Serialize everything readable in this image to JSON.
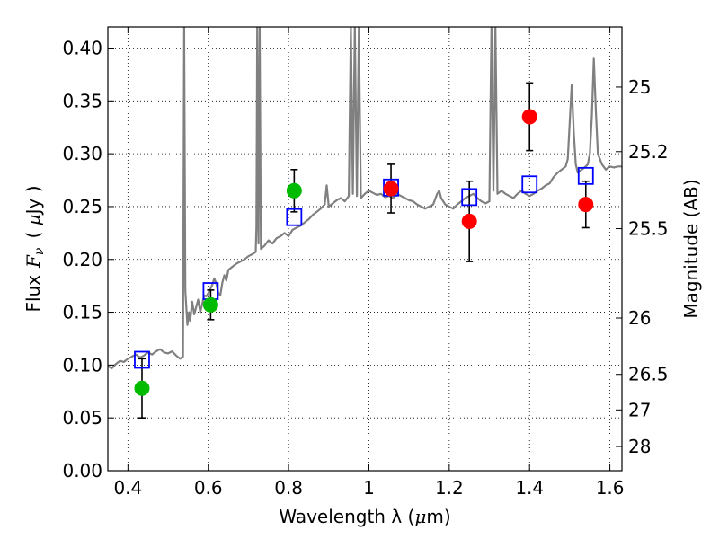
{
  "chart_data": {
    "type": "scatter",
    "xlabel_main": "Wavelength  λ (",
    "xlabel_mu": "μ",
    "xlabel_end": "m)",
    "ylabel_left_a": "Flux",
    "ylabel_left_sym": "F",
    "ylabel_left_sub": "ν",
    "ylabel_left_b": "( ",
    "ylabel_left_mu": "μ",
    "ylabel_left_c": "Jy )",
    "ylabel_right": "Magnitude (AB)",
    "xlim": [
      0.35,
      1.63
    ],
    "ylim": [
      0.0,
      0.42
    ],
    "grid": true,
    "x_ticks": [
      {
        "value": 0.4,
        "label": "0.4"
      },
      {
        "value": 0.6,
        "label": "0.6"
      },
      {
        "value": 0.8,
        "label": "0.8"
      },
      {
        "value": 1.0,
        "label": "1"
      },
      {
        "value": 1.2,
        "label": "1.2"
      },
      {
        "value": 1.4,
        "label": "1.4"
      },
      {
        "value": 1.6,
        "label": "1.6"
      }
    ],
    "y_ticks": [
      {
        "value": 0.0,
        "label": "0.00"
      },
      {
        "value": 0.05,
        "label": "0.05"
      },
      {
        "value": 0.1,
        "label": "0.10"
      },
      {
        "value": 0.15,
        "label": "0.15"
      },
      {
        "value": 0.2,
        "label": "0.20"
      },
      {
        "value": 0.25,
        "label": "0.25"
      },
      {
        "value": 0.3,
        "label": "0.30"
      },
      {
        "value": 0.35,
        "label": "0.35"
      },
      {
        "value": 0.4,
        "label": "0.40"
      }
    ],
    "magnitude_ticks": [
      {
        "label": "25",
        "mag": 25
      },
      {
        "label": "25.2",
        "mag": 25.2
      },
      {
        "label": "25.5",
        "mag": 25.5
      },
      {
        "label": "26",
        "mag": 26
      },
      {
        "label": "26.5",
        "mag": 26.5
      },
      {
        "label": "27",
        "mag": 27
      },
      {
        "label": "28",
        "mag": 28
      }
    ],
    "magnitude_zero_point": 23.9,
    "colors": {
      "model_sed": "#808080",
      "model_photometry": "#0000ff",
      "optical_obs": "#00bb00",
      "nir_obs": "#ff0000",
      "errorbar": "#000000"
    },
    "model_sed": [
      [
        0.35,
        0.099
      ],
      [
        0.36,
        0.097
      ],
      [
        0.37,
        0.101
      ],
      [
        0.38,
        0.104
      ],
      [
        0.39,
        0.103
      ],
      [
        0.4,
        0.106
      ],
      [
        0.41,
        0.108
      ],
      [
        0.42,
        0.11
      ],
      [
        0.43,
        0.107
      ],
      [
        0.44,
        0.109
      ],
      [
        0.45,
        0.112
      ],
      [
        0.46,
        0.11
      ],
      [
        0.47,
        0.113
      ],
      [
        0.48,
        0.115
      ],
      [
        0.49,
        0.112
      ],
      [
        0.5,
        0.111
      ],
      [
        0.51,
        0.113
      ],
      [
        0.52,
        0.109
      ],
      [
        0.53,
        0.106
      ],
      [
        0.537,
        0.108
      ],
      [
        0.54,
        0.42
      ],
      [
        0.543,
        0.17
      ],
      [
        0.548,
        0.138
      ],
      [
        0.552,
        0.15
      ],
      [
        0.555,
        0.142
      ],
      [
        0.56,
        0.16
      ],
      [
        0.565,
        0.148
      ],
      [
        0.57,
        0.155
      ],
      [
        0.575,
        0.162
      ],
      [
        0.58,
        0.15
      ],
      [
        0.585,
        0.158
      ],
      [
        0.59,
        0.166
      ],
      [
        0.595,
        0.165
      ],
      [
        0.6,
        0.168
      ],
      [
        0.605,
        0.172
      ],
      [
        0.61,
        0.176
      ],
      [
        0.615,
        0.182
      ],
      [
        0.62,
        0.177
      ],
      [
        0.625,
        0.168
      ],
      [
        0.63,
        0.166
      ],
      [
        0.635,
        0.178
      ],
      [
        0.64,
        0.185
      ],
      [
        0.645,
        0.18
      ],
      [
        0.65,
        0.19
      ],
      [
        0.66,
        0.193
      ],
      [
        0.67,
        0.196
      ],
      [
        0.68,
        0.198
      ],
      [
        0.69,
        0.2
      ],
      [
        0.7,
        0.203
      ],
      [
        0.71,
        0.205
      ],
      [
        0.718,
        0.207
      ],
      [
        0.72,
        0.23
      ],
      [
        0.722,
        0.42
      ],
      [
        0.725,
        0.215
      ],
      [
        0.728,
        0.42
      ],
      [
        0.731,
        0.21
      ],
      [
        0.74,
        0.213
      ],
      [
        0.75,
        0.218
      ],
      [
        0.76,
        0.215
      ],
      [
        0.77,
        0.22
      ],
      [
        0.78,
        0.222
      ],
      [
        0.79,
        0.225
      ],
      [
        0.8,
        0.222
      ],
      [
        0.81,
        0.228
      ],
      [
        0.82,
        0.23
      ],
      [
        0.83,
        0.232
      ],
      [
        0.84,
        0.235
      ],
      [
        0.85,
        0.238
      ],
      [
        0.86,
        0.242
      ],
      [
        0.87,
        0.245
      ],
      [
        0.88,
        0.248
      ],
      [
        0.89,
        0.252
      ],
      [
        0.895,
        0.27
      ],
      [
        0.9,
        0.25
      ],
      [
        0.91,
        0.253
      ],
      [
        0.92,
        0.256
      ],
      [
        0.93,
        0.258
      ],
      [
        0.94,
        0.255
      ],
      [
        0.95,
        0.26
      ],
      [
        0.955,
        0.42
      ],
      [
        0.96,
        0.262
      ],
      [
        0.965,
        0.42
      ],
      [
        0.97,
        0.26
      ],
      [
        0.975,
        0.42
      ],
      [
        0.98,
        0.258
      ],
      [
        0.99,
        0.262
      ],
      [
        1.0,
        0.265
      ],
      [
        1.01,
        0.263
      ],
      [
        1.02,
        0.261
      ],
      [
        1.03,
        0.262
      ],
      [
        1.04,
        0.259
      ],
      [
        1.05,
        0.26
      ],
      [
        1.06,
        0.258
      ],
      [
        1.07,
        0.262
      ],
      [
        1.08,
        0.26
      ],
      [
        1.09,
        0.258
      ],
      [
        1.1,
        0.256
      ],
      [
        1.11,
        0.255
      ],
      [
        1.12,
        0.252
      ],
      [
        1.13,
        0.25
      ],
      [
        1.14,
        0.248
      ],
      [
        1.15,
        0.25
      ],
      [
        1.16,
        0.252
      ],
      [
        1.17,
        0.262
      ],
      [
        1.175,
        0.265
      ],
      [
        1.18,
        0.258
      ],
      [
        1.19,
        0.252
      ],
      [
        1.2,
        0.25
      ],
      [
        1.21,
        0.248
      ],
      [
        1.22,
        0.252
      ],
      [
        1.23,
        0.255
      ],
      [
        1.24,
        0.258
      ],
      [
        1.25,
        0.26
      ],
      [
        1.26,
        0.262
      ],
      [
        1.27,
        0.258
      ],
      [
        1.28,
        0.255
      ],
      [
        1.29,
        0.253
      ],
      [
        1.3,
        0.255
      ],
      [
        1.305,
        0.42
      ],
      [
        1.31,
        0.265
      ],
      [
        1.315,
        0.42
      ],
      [
        1.32,
        0.262
      ],
      [
        1.33,
        0.265
      ],
      [
        1.34,
        0.262
      ],
      [
        1.35,
        0.26
      ],
      [
        1.36,
        0.258
      ],
      [
        1.37,
        0.262
      ],
      [
        1.38,
        0.265
      ],
      [
        1.39,
        0.262
      ],
      [
        1.4,
        0.26
      ],
      [
        1.41,
        0.262
      ],
      [
        1.42,
        0.265
      ],
      [
        1.43,
        0.267
      ],
      [
        1.44,
        0.27
      ],
      [
        1.45,
        0.272
      ],
      [
        1.46,
        0.278
      ],
      [
        1.47,
        0.282
      ],
      [
        1.48,
        0.285
      ],
      [
        1.49,
        0.288
      ],
      [
        1.495,
        0.295
      ],
      [
        1.5,
        0.33
      ],
      [
        1.505,
        0.365
      ],
      [
        1.51,
        0.32
      ],
      [
        1.515,
        0.29
      ],
      [
        1.52,
        0.282
      ],
      [
        1.53,
        0.285
      ],
      [
        1.54,
        0.288
      ],
      [
        1.545,
        0.29
      ],
      [
        1.55,
        0.3
      ],
      [
        1.555,
        0.335
      ],
      [
        1.56,
        0.39
      ],
      [
        1.565,
        0.34
      ],
      [
        1.57,
        0.3
      ],
      [
        1.58,
        0.29
      ],
      [
        1.59,
        0.285
      ],
      [
        1.6,
        0.288
      ],
      [
        1.61,
        0.287
      ],
      [
        1.62,
        0.288
      ],
      [
        1.63,
        0.288
      ]
    ],
    "model_photometry": [
      {
        "x": 0.435,
        "y": 0.105
      },
      {
        "x": 0.606,
        "y": 0.17
      },
      {
        "x": 0.814,
        "y": 0.24
      },
      {
        "x": 1.055,
        "y": 0.268
      },
      {
        "x": 1.25,
        "y": 0.259
      },
      {
        "x": 1.4,
        "y": 0.271
      },
      {
        "x": 1.54,
        "y": 0.279
      }
    ],
    "observations": [
      {
        "group": "optical",
        "x": 0.435,
        "y": 0.078,
        "err_low": 0.028,
        "err_high": 0.028
      },
      {
        "group": "optical",
        "x": 0.606,
        "y": 0.157,
        "err_low": 0.014,
        "err_high": 0.014
      },
      {
        "group": "optical",
        "x": 0.814,
        "y": 0.265,
        "err_low": 0.02,
        "err_high": 0.02
      },
      {
        "group": "nir",
        "x": 1.055,
        "y": 0.267,
        "err_low": 0.023,
        "err_high": 0.023
      },
      {
        "group": "nir",
        "x": 1.25,
        "y": 0.236,
        "err_low": 0.038,
        "err_high": 0.038
      },
      {
        "group": "nir",
        "x": 1.4,
        "y": 0.335,
        "err_low": 0.032,
        "err_high": 0.032
      },
      {
        "group": "nir",
        "x": 1.54,
        "y": 0.252,
        "err_low": 0.022,
        "err_high": 0.022
      }
    ]
  }
}
